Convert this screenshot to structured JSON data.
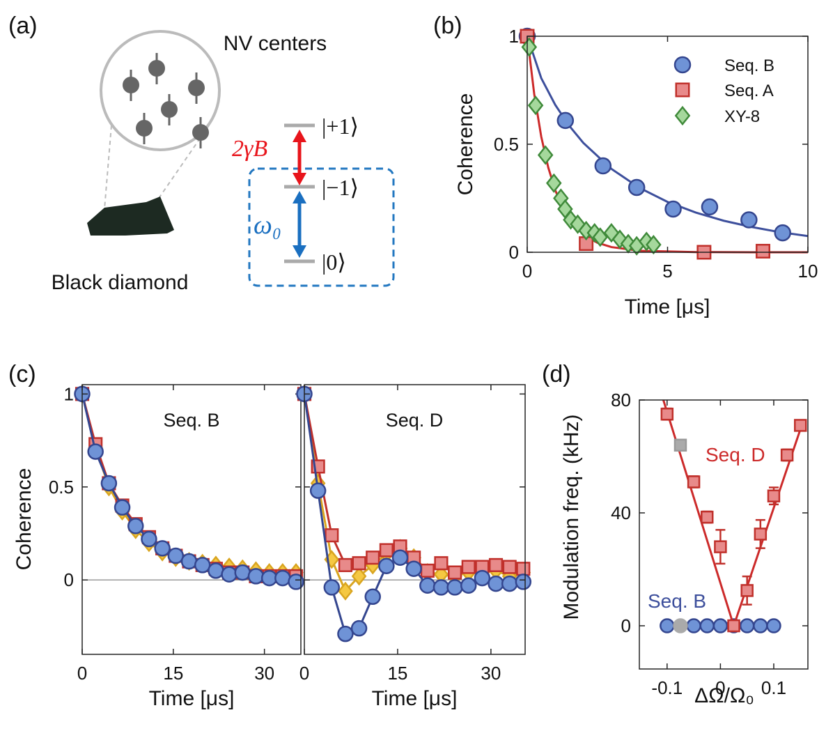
{
  "diagram": {
    "panel_label": "(a)",
    "nv_label": "NV centers",
    "diamond_label": "Black diamond",
    "splitting": "2γB",
    "omega": "ω₀",
    "levels": [
      "|+1⟩",
      "|−1⟩",
      "|0⟩"
    ]
  },
  "chart_data": [
    {
      "type": "scatter",
      "panel_label": "(b)",
      "xlabel": "Time [μs]",
      "ylabel": "Coherence",
      "xlim": [
        0,
        10
      ],
      "ylim": [
        0,
        1
      ],
      "xticks": [
        0,
        5,
        10
      ],
      "yticks": [
        0,
        0.5,
        1
      ],
      "legend": "upper right",
      "series": [
        {
          "color": "#3d4f9c",
          "line": true,
          "x": [
            0,
            0.5,
            1,
            1.5,
            2,
            3,
            4,
            5,
            6,
            7,
            8,
            9,
            10
          ],
          "values": [
            1,
            0.806,
            0.682,
            0.585,
            0.506,
            0.386,
            0.298,
            0.233,
            0.184,
            0.146,
            0.117,
            0.093,
            0.075
          ]
        },
        {
          "color": "#cc2a2a",
          "line": true,
          "x": [
            0,
            0.25,
            0.5,
            0.75,
            1,
            1.25,
            1.5,
            2,
            2.5,
            3,
            4,
            6,
            8,
            10
          ],
          "values": [
            1,
            0.732,
            0.535,
            0.392,
            0.287,
            0.21,
            0.153,
            0.082,
            0.044,
            0.024,
            0.007,
            0.001,
            0,
            0
          ]
        },
        {
          "name": "Seq. B",
          "color": "#6f93d6",
          "edge": "#34468f",
          "marker": "circle",
          "x": [
            0,
            1.36,
            2.7,
            3.9,
            5.2,
            6.5,
            7.9,
            9.1
          ],
          "values": [
            1,
            0.61,
            0.4,
            0.3,
            0.2,
            0.21,
            0.15,
            0.09
          ]
        },
        {
          "name": "Seq. A",
          "color": "#e88a8a",
          "edge": "#c0302b",
          "marker": "square",
          "x": [
            0,
            2.1,
            6.3,
            8.4
          ],
          "values": [
            1,
            0.04,
            0,
            0.005
          ]
        },
        {
          "name": "XY-8",
          "color": "#a5d89c",
          "edge": "#3f8a3a",
          "marker": "diamond",
          "x": [
            0.07,
            0.3,
            0.65,
            0.95,
            1.2,
            1.35,
            1.55,
            1.8,
            2.1,
            2.4,
            2.6,
            3.0,
            3.3,
            3.6,
            3.9,
            4.25,
            4.5
          ],
          "values": [
            0.95,
            0.68,
            0.45,
            0.32,
            0.25,
            0.2,
            0.15,
            0.13,
            0.1,
            0.09,
            0.07,
            0.09,
            0.06,
            0.04,
            0.03,
            0.05,
            0.035
          ]
        }
      ]
    },
    {
      "type": "line",
      "panel_label": "(c)",
      "title": "Seq. B",
      "xlabel": "Time [μs]",
      "ylabel": "Coherence",
      "xlim": [
        0,
        36
      ],
      "ylim": [
        -0.4,
        1.05
      ],
      "xticks": [
        0,
        15,
        30
      ],
      "yticks": [
        0,
        0.5,
        1
      ],
      "reference_line": 0,
      "x": [
        0,
        2.2,
        4.4,
        6.6,
        8.8,
        11,
        13.2,
        15.4,
        17.6,
        19.8,
        22,
        24.2,
        26.4,
        28.6,
        30.8,
        33,
        35.2
      ],
      "series": [
        {
          "color": "#f5c842",
          "edge": "#d9a520",
          "marker": "diamond",
          "values": [
            1,
            0.71,
            0.5,
            0.37,
            0.27,
            0.2,
            0.15,
            0.12,
            0.1,
            0.09,
            0.08,
            0.07,
            0.06,
            0.05,
            0.04,
            0.04,
            0.04
          ]
        },
        {
          "color": "#e88a8a",
          "edge": "#c0302b",
          "marker": "square",
          "values": [
            1,
            0.73,
            0.52,
            0.4,
            0.3,
            0.23,
            0.17,
            0.13,
            0.1,
            0.08,
            0.06,
            0.04,
            0.04,
            0.02,
            0.02,
            0.02,
            0.02
          ]
        },
        {
          "color": "#6f93d6",
          "edge": "#34468f",
          "marker": "circle",
          "values": [
            1,
            0.69,
            0.52,
            0.39,
            0.29,
            0.22,
            0.17,
            0.13,
            0.1,
            0.08,
            0.05,
            0.03,
            0.04,
            0.02,
            0.01,
            0.01,
            -0.01
          ]
        }
      ]
    },
    {
      "type": "line",
      "title": "Seq. D",
      "xlabel": "Time [μs]",
      "xlim": [
        0,
        35.5
      ],
      "ylim": [
        -0.4,
        1.05
      ],
      "xticks": [
        0,
        15,
        30
      ],
      "yticks": [
        0,
        0.5,
        1
      ],
      "ytick_labels": false,
      "reference_line": 0,
      "x": [
        0,
        2.2,
        4.4,
        6.6,
        8.8,
        11,
        13.2,
        15.4,
        17.6,
        19.8,
        22,
        24.2,
        26.4,
        28.6,
        30.8,
        33,
        35.2
      ],
      "series": [
        {
          "color": "#f5c842",
          "edge": "#d9a520",
          "marker": "diamond",
          "values": [
            1,
            0.52,
            0.11,
            -0.06,
            0.02,
            0.08,
            0.14,
            0.17,
            0.12,
            0.04,
            0.03,
            0.02,
            0.04,
            0.04,
            0.05,
            0.02,
            0.04
          ]
        },
        {
          "color": "#e88a8a",
          "edge": "#c0302b",
          "marker": "square",
          "values": [
            1,
            0.61,
            0.24,
            0.08,
            0.09,
            0.12,
            0.16,
            0.18,
            0.12,
            0.05,
            0.09,
            0.04,
            0.07,
            0.07,
            0.08,
            0.07,
            0.06
          ]
        },
        {
          "color": "#6f93d6",
          "edge": "#34468f",
          "marker": "circle",
          "values": [
            1,
            0.48,
            -0.04,
            -0.29,
            -0.26,
            -0.09,
            0.075,
            0.12,
            0.06,
            -0.03,
            -0.04,
            -0.04,
            -0.03,
            0.01,
            -0.02,
            -0.02,
            -0.01
          ]
        }
      ]
    },
    {
      "type": "scatter",
      "panel_label": "(d)",
      "xlabel": "ΔΩ/Ω₀",
      "ylabel": "Modulation freq. (kHz)",
      "xlim": [
        -0.152,
        0.164
      ],
      "ylim": [
        -15.3,
        80
      ],
      "xticks": [
        -0.1,
        0,
        0.1
      ],
      "yticks": [
        0,
        40,
        80
      ],
      "annotations": [
        {
          "text": "Seq. D",
          "color": "#cc2a2a"
        },
        {
          "text": "Seq. B",
          "color": "#3d4f9c"
        }
      ],
      "series": [
        {
          "color": "#3d4f9c",
          "line": true,
          "x": [
            -0.1,
            0.1
          ],
          "values": [
            0,
            0
          ]
        },
        {
          "color": "#6f93d6",
          "edge": "#34468f",
          "marker": "circle",
          "x": [
            -0.1,
            -0.05,
            -0.025,
            0,
            0.025,
            0.05,
            0.075,
            0.1
          ],
          "values": [
            0,
            0,
            0,
            0,
            0,
            0,
            0,
            0
          ]
        },
        {
          "color": "#aaaaaa",
          "edge": "#aaaaaa",
          "marker": "circle",
          "x": [
            -0.075
          ],
          "values": [
            0
          ]
        },
        {
          "color": "#cc2a2a",
          "line": true,
          "x": [
            -0.107,
            0.025,
            0.156
          ],
          "values": [
            80,
            0,
            73
          ]
        },
        {
          "color": "#e88a8a",
          "edge": "#c0302b",
          "marker": "square",
          "x": [
            -0.1,
            -0.05,
            -0.025,
            0,
            0.025,
            0.05,
            0.075,
            0.1,
            0.125,
            0.15
          ],
          "values": [
            75,
            51,
            38.5,
            28,
            0,
            12.5,
            32.5,
            46,
            60.5,
            71
          ],
          "errors": [
            2,
            2,
            2,
            6,
            1,
            5,
            5,
            3,
            2,
            1.5
          ]
        },
        {
          "color": "#aaaaaa",
          "edge": "#999999",
          "marker": "square",
          "x": [
            -0.075
          ],
          "values": [
            64
          ],
          "errors": [
            1.5
          ]
        }
      ]
    }
  ]
}
